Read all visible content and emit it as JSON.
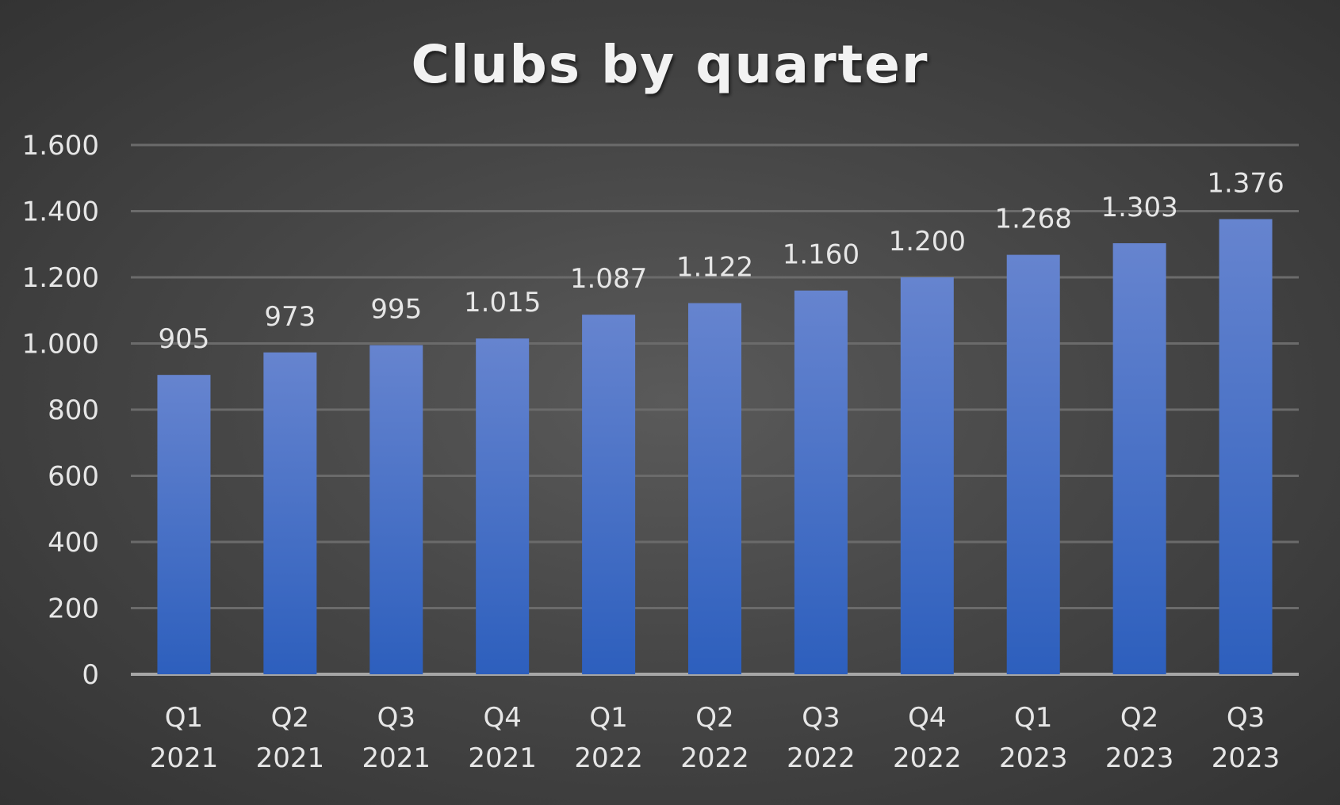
{
  "chart_data": {
    "type": "bar",
    "title": "Clubs by quarter",
    "xlabel": "",
    "ylabel": "",
    "categories": [
      [
        "Q1",
        "2021"
      ],
      [
        "Q2",
        "2021"
      ],
      [
        "Q3",
        "2021"
      ],
      [
        "Q4",
        "2021"
      ],
      [
        "Q1",
        "2022"
      ],
      [
        "Q2",
        "2022"
      ],
      [
        "Q3",
        "2022"
      ],
      [
        "Q4",
        "2022"
      ],
      [
        "Q1",
        "2023"
      ],
      [
        "Q2",
        "2023"
      ],
      [
        "Q3",
        "2023"
      ]
    ],
    "values": [
      905,
      973,
      995,
      1015,
      1087,
      1122,
      1160,
      1200,
      1268,
      1303,
      1376
    ],
    "value_labels": [
      "905",
      "973",
      "995",
      "1.015",
      "1.087",
      "1.122",
      "1.160",
      "1.200",
      "1.268",
      "1.303",
      "1.376"
    ],
    "ylim": [
      0,
      1600
    ],
    "yticks": [
      0,
      200,
      400,
      600,
      800,
      1000,
      1200,
      1400,
      1600
    ],
    "ytick_labels": [
      "0",
      "200",
      "400",
      "600",
      "800",
      "1.000",
      "1.200",
      "1.400",
      "1.600"
    ],
    "grid": true,
    "legend": "none",
    "colors": {
      "bar_top": "#6684cf",
      "bar_bottom": "#2d5fbd",
      "grid": "#6b6b6b",
      "axis": "#a6a6a6",
      "text": "#e6e6e6"
    }
  }
}
